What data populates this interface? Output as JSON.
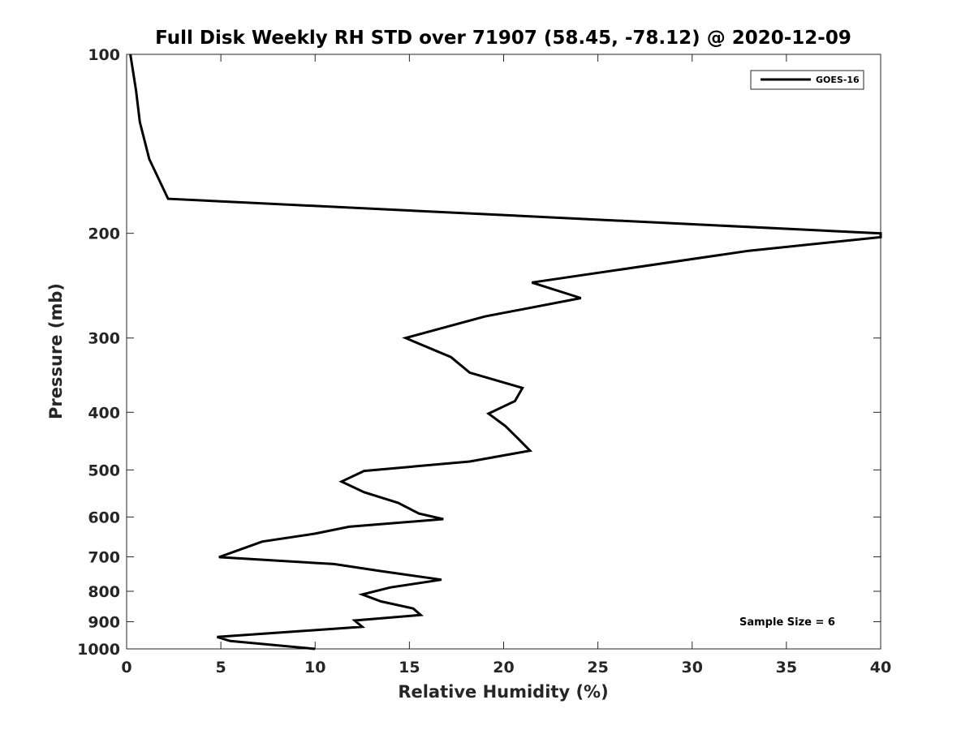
{
  "chart_data": {
    "type": "line",
    "title": "Full Disk Weekly RH STD over 71907 (58.45, -78.12) @ 2020-12-09",
    "xlabel": "Relative Humidity (%)",
    "ylabel": "Pressure (mb)",
    "xlim": [
      0,
      40
    ],
    "ylim": [
      100,
      1000
    ],
    "y_scale": "log",
    "y_reversed": true,
    "grid": false,
    "legend_position": "top-right",
    "x_ticks": [
      "0",
      "5",
      "10",
      "15",
      "20",
      "25",
      "30",
      "35",
      "40"
    ],
    "y_ticks": [
      "100",
      "200",
      "300",
      "400",
      "500",
      "600",
      "700",
      "800",
      "900",
      "1000"
    ],
    "series": [
      {
        "name": "GOES-16",
        "color": "#000000",
        "points": [
          [
            0.2,
            100
          ],
          [
            0.5,
            115
          ],
          [
            0.7,
            130
          ],
          [
            1.2,
            150
          ],
          [
            2.2,
            175
          ],
          [
            40.0,
            200
          ],
          [
            40.0,
            203
          ],
          [
            33.0,
            214
          ],
          [
            21.5,
            242
          ],
          [
            24.1,
            257
          ],
          [
            19.0,
            276
          ],
          [
            14.8,
            300
          ],
          [
            17.2,
            323
          ],
          [
            18.2,
            343
          ],
          [
            21.0,
            364
          ],
          [
            20.6,
            383
          ],
          [
            19.2,
            402
          ],
          [
            20.1,
            422
          ],
          [
            20.8,
            444
          ],
          [
            21.4,
            464
          ],
          [
            18.2,
            484
          ],
          [
            12.6,
            502
          ],
          [
            11.4,
            523
          ],
          [
            12.6,
            545
          ],
          [
            14.4,
            568
          ],
          [
            15.5,
            592
          ],
          [
            16.8,
            605
          ],
          [
            11.8,
            623
          ],
          [
            10.0,
            640
          ],
          [
            7.2,
            660
          ],
          [
            6.0,
            681
          ],
          [
            4.9,
            701
          ],
          [
            11.0,
            720
          ],
          [
            13.5,
            740
          ],
          [
            16.7,
            765
          ],
          [
            14.0,
            788
          ],
          [
            12.5,
            810
          ],
          [
            13.5,
            832
          ],
          [
            15.2,
            855
          ],
          [
            15.6,
            877
          ],
          [
            12.1,
            896
          ],
          [
            12.5,
            918
          ],
          [
            4.8,
            955
          ],
          [
            5.5,
            970
          ],
          [
            10.0,
            1000
          ]
        ]
      }
    ],
    "annotations": [
      "Sample Size = 6"
    ]
  }
}
